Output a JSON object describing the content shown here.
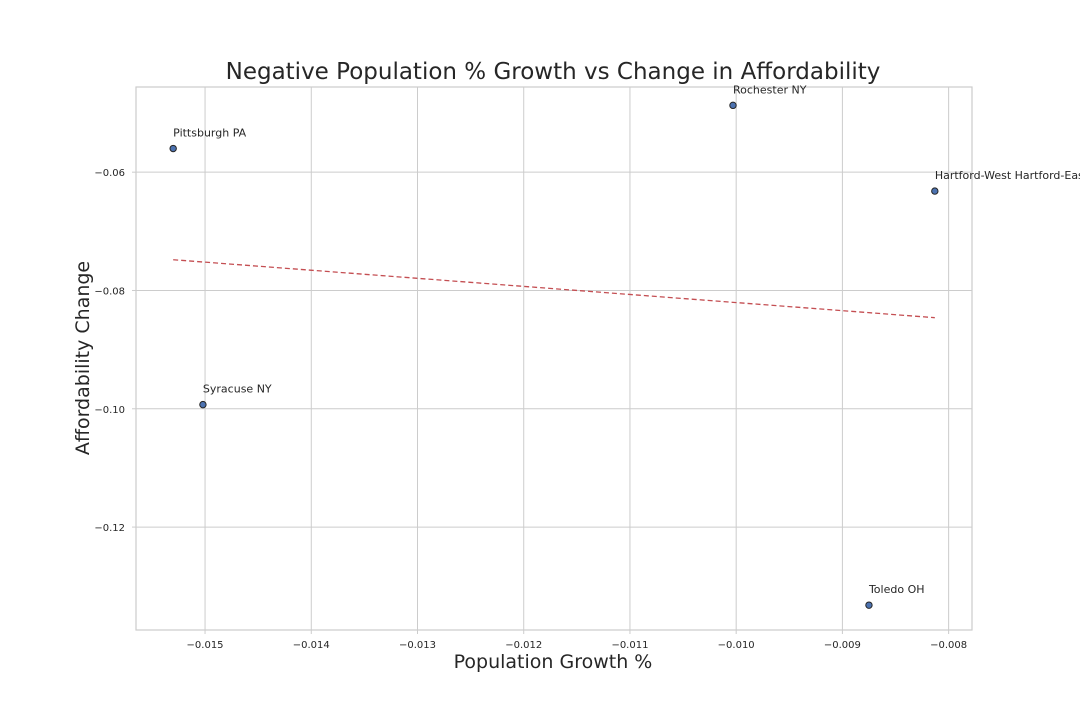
{
  "chart_data": {
    "type": "scatter",
    "title": "Negative Population % Growth vs Change in Affordability",
    "xlabel": "Population Growth %",
    "ylabel": "Affordability Change",
    "xlim": [
      -0.01565,
      -0.00778
    ],
    "ylim": [
      -0.1374,
      -0.0456
    ],
    "x_ticks": [
      -0.015,
      -0.014,
      -0.013,
      -0.012,
      -0.011,
      -0.01,
      -0.009,
      -0.008
    ],
    "x_tick_labels": [
      "−0.015",
      "−0.014",
      "−0.013",
      "−0.012",
      "−0.011",
      "−0.010",
      "−0.009",
      "−0.008"
    ],
    "y_ticks": [
      -0.06,
      -0.08,
      -0.1,
      -0.12
    ],
    "y_tick_labels": [
      "−0.06",
      "−0.08",
      "−0.10",
      "−0.12"
    ],
    "grid": true,
    "points": [
      {
        "label": "Pittsburgh PA",
        "x": -0.0153,
        "y": -0.056
      },
      {
        "label": "Rochester NY",
        "x": -0.01003,
        "y": -0.0487
      },
      {
        "label": "Hartford-West Hartford-Eas",
        "x": -0.00813,
        "y": -0.0632
      },
      {
        "label": "Syracuse NY",
        "x": -0.01502,
        "y": -0.0993
      },
      {
        "label": "Toledo OH",
        "x": -0.00875,
        "y": -0.1332
      }
    ],
    "trendline": {
      "x": [
        -0.0153,
        -0.00813
      ],
      "y": [
        -0.0748,
        -0.0846
      ]
    },
    "colors": {
      "point": "#4c72b0",
      "point_edge": "#262626",
      "trendline": "#c44e52",
      "grid": "#cccccc"
    }
  }
}
